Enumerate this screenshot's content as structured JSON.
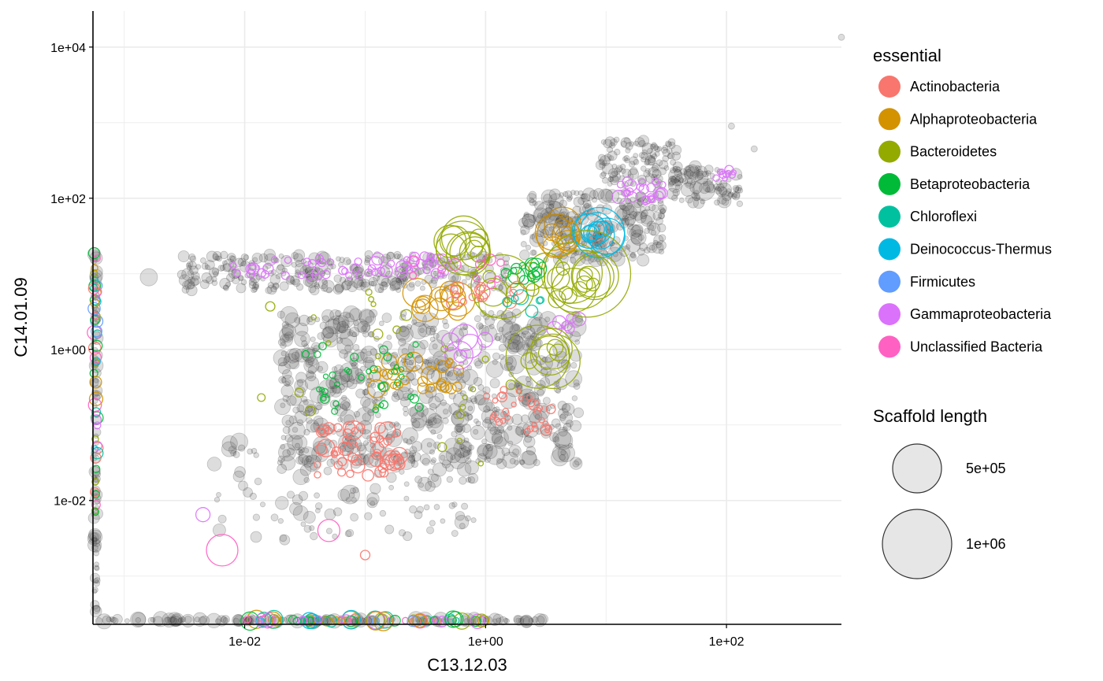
{
  "chart_data": {
    "type": "scatter",
    "xlabel": "C13.12.03",
    "ylabel": "C14.01.09",
    "x_scale": "log10",
    "y_scale": "log10",
    "xlim": [
      0.00055,
      900
    ],
    "ylim": [
      0.00023,
      30000
    ],
    "x_ticks": [
      {
        "value": 0.01,
        "label": "1e-02"
      },
      {
        "value": 1,
        "label": "1e+00"
      },
      {
        "value": 100,
        "label": "1e+02"
      }
    ],
    "y_ticks": [
      {
        "value": 0.01,
        "label": "1e-02"
      },
      {
        "value": 1,
        "label": "1e+00"
      },
      {
        "value": 100,
        "label": "1e+02"
      },
      {
        "value": 10000,
        "label": "1e+04"
      }
    ],
    "grid": true,
    "legend_placement": "right",
    "color_legend": {
      "title": "essential",
      "entries": [
        {
          "label": "Actinobacteria",
          "color": "#F8766D"
        },
        {
          "label": "Alphaproteobacteria",
          "color": "#D39200"
        },
        {
          "label": "Bacteroidetes",
          "color": "#93AA00"
        },
        {
          "label": "Betaproteobacteria",
          "color": "#00BA38"
        },
        {
          "label": "Chloroflexi",
          "color": "#00C19F"
        },
        {
          "label": "Deinococcus-Thermus",
          "color": "#00B9E3"
        },
        {
          "label": "Firmicutes",
          "color": "#619CFF"
        },
        {
          "label": "Gammaproteobacteria",
          "color": "#DB72FB"
        },
        {
          "label": "Unclassified Bacteria",
          "color": "#FF61C3"
        }
      ]
    },
    "size_legend": {
      "title": "Scaffold length",
      "entries": [
        {
          "label": "5e+05",
          "value": 500000
        },
        {
          "label": "1e+06",
          "value": 1000000
        }
      ]
    },
    "background_point_color": "#000000",
    "clusters": [
      {
        "name": "grey-top-right-band",
        "category": null,
        "x": [
          9,
          40
        ],
        "y": [
          150,
          600
        ],
        "n": 120,
        "size": [
          3,
          7
        ]
      },
      {
        "name": "grey-far-band",
        "category": null,
        "x": [
          35,
          130
        ],
        "y": [
          80,
          260
        ],
        "n": 90,
        "size": [
          3,
          9
        ]
      },
      {
        "name": "grey-diagonal",
        "category": null,
        "x": [
          2,
          30
        ],
        "y": [
          15,
          120
        ],
        "n": 260,
        "size": [
          3,
          10
        ]
      },
      {
        "name": "grey-horizontal",
        "category": null,
        "x": [
          0.003,
          1.5
        ],
        "y": [
          6,
          18
        ],
        "n": 320,
        "size": [
          3,
          8
        ]
      },
      {
        "name": "grey-main-cloud",
        "category": null,
        "x": [
          0.02,
          6
        ],
        "y": [
          0.03,
          3
        ],
        "n": 700,
        "size": [
          3,
          12
        ]
      },
      {
        "name": "grey-low-scatter",
        "category": null,
        "x": [
          0.005,
          0.8
        ],
        "y": [
          0.003,
          0.06
        ],
        "n": 130,
        "size": [
          3,
          10
        ]
      },
      {
        "name": "grey-x-axis-floor",
        "category": null,
        "x": [
          0.0006,
          3
        ],
        "y": [
          0.00025,
          0.00027
        ],
        "n": 160,
        "size": [
          3,
          10
        ]
      },
      {
        "name": "grey-y-axis-wall",
        "category": null,
        "x": [
          0.00056,
          0.0006
        ],
        "y": [
          0.0003,
          20
        ],
        "n": 90,
        "size": [
          3,
          9
        ]
      },
      {
        "name": "gamma-top-band",
        "category": "Gammaproteobacteria",
        "x": [
          12,
          30
        ],
        "y": [
          90,
          170
        ],
        "n": 22,
        "size": [
          4,
          9
        ]
      },
      {
        "name": "gamma-far-band",
        "category": "Gammaproteobacteria",
        "x": [
          80,
          120
        ],
        "y": [
          180,
          240
        ],
        "n": 10,
        "size": [
          3,
          7
        ]
      },
      {
        "name": "gamma-horizontal",
        "category": "Gammaproteobacteria",
        "x": [
          0.008,
          0.5
        ],
        "y": [
          9,
          18
        ],
        "n": 55,
        "size": [
          4,
          8
        ]
      },
      {
        "name": "gamma-mid",
        "category": "Gammaproteobacteria",
        "x": [
          0.5,
          1.0
        ],
        "y": [
          0.8,
          1.5
        ],
        "n": 6,
        "size": [
          8,
          22
        ]
      },
      {
        "name": "gamma-right",
        "category": "Gammaproteobacteria",
        "x": [
          3.5,
          6
        ],
        "y": [
          1.6,
          3.0
        ],
        "n": 6,
        "size": [
          6,
          16
        ]
      },
      {
        "name": "alpha-big",
        "category": "Alphaproteobacteria",
        "x": [
          3,
          5
        ],
        "y": [
          22,
          45
        ],
        "n": 9,
        "size": [
          10,
          28
        ]
      },
      {
        "name": "alpha-mid",
        "category": "Alphaproteobacteria",
        "x": [
          0.25,
          0.6
        ],
        "y": [
          3,
          6
        ],
        "n": 14,
        "size": [
          8,
          22
        ]
      },
      {
        "name": "alpha-low",
        "category": "Alphaproteobacteria",
        "x": [
          0.12,
          0.6
        ],
        "y": [
          0.3,
          0.7
        ],
        "n": 30,
        "size": [
          4,
          12
        ]
      },
      {
        "name": "bact-top",
        "category": "Bacteroidetes",
        "x": [
          0.5,
          0.9
        ],
        "y": [
          18,
          30
        ],
        "n": 10,
        "size": [
          10,
          32
        ]
      },
      {
        "name": "bact-center",
        "category": "Bacteroidetes",
        "x": [
          1,
          9
        ],
        "y": [
          4,
          12
        ],
        "n": 24,
        "size": [
          8,
          42
        ]
      },
      {
        "name": "bact-low",
        "category": "Bacteroidetes",
        "x": [
          2.2,
          4
        ],
        "y": [
          0.6,
          1.1
        ],
        "n": 7,
        "size": [
          10,
          36
        ]
      },
      {
        "name": "bact-small",
        "category": "Bacteroidetes",
        "x": [
          0.01,
          2
        ],
        "y": [
          0.02,
          6
        ],
        "n": 28,
        "size": [
          3,
          7
        ]
      },
      {
        "name": "deino",
        "category": "Deinococcus-Thermus",
        "x": [
          7,
          11
        ],
        "y": [
          28,
          45
        ],
        "n": 8,
        "size": [
          10,
          30
        ]
      },
      {
        "name": "beta-center",
        "category": "Betaproteobacteria",
        "x": [
          1.3,
          3
        ],
        "y": [
          8,
          16
        ],
        "n": 14,
        "size": [
          4,
          14
        ]
      },
      {
        "name": "beta-left",
        "category": "Betaproteobacteria",
        "x": [
          0.03,
          0.3
        ],
        "y": [
          0.15,
          1.2
        ],
        "n": 36,
        "size": [
          3,
          6
        ]
      },
      {
        "name": "actino-cloud",
        "category": "Actinobacteria",
        "x": [
          0.04,
          0.2
        ],
        "y": [
          0.02,
          0.1
        ],
        "n": 55,
        "size": [
          4,
          12
        ]
      },
      {
        "name": "actino-right",
        "category": "Actinobacteria",
        "x": [
          1,
          3.5
        ],
        "y": [
          0.08,
          0.3
        ],
        "n": 30,
        "size": [
          3,
          7
        ]
      },
      {
        "name": "actino-mid",
        "category": "Actinobacteria",
        "x": [
          0.5,
          2
        ],
        "y": [
          4,
          7
        ],
        "n": 14,
        "size": [
          4,
          9
        ]
      },
      {
        "name": "chloro-center",
        "category": "Chloroflexi",
        "x": [
          1.5,
          3
        ],
        "y": [
          3,
          5
        ],
        "n": 6,
        "size": [
          4,
          10
        ]
      },
      {
        "name": "unclass-horizontal",
        "category": "Unclassified Bacteria",
        "x": [
          0.2,
          2
        ],
        "y": [
          7,
          16
        ],
        "n": 10,
        "size": [
          4,
          9
        ]
      },
      {
        "name": "colored-x-axis-floor",
        "category": "mixed",
        "x": [
          0.008,
          1.0
        ],
        "y": [
          0.00025,
          0.00027
        ],
        "n": 70,
        "size": [
          4,
          12
        ]
      },
      {
        "name": "colored-y-axis-wall",
        "category": "mixed",
        "x": [
          0.00056,
          0.0006
        ],
        "y": [
          0.006,
          20
        ],
        "n": 50,
        "size": [
          4,
          9
        ]
      }
    ],
    "points": [
      {
        "category": null,
        "x": 1000,
        "y": 13500,
        "size": 4
      },
      {
        "category": null,
        "x": 0.0016,
        "y": 9,
        "size": 11
      },
      {
        "category": "Unclassified Bacteria",
        "x": 0.0065,
        "y": 0.0022,
        "size": 20
      },
      {
        "category": "Unclassified Bacteria",
        "x": 0.05,
        "y": 0.004,
        "size": 14
      },
      {
        "category": "Gammaproteobacteria",
        "x": 0.0045,
        "y": 0.0065,
        "size": 9
      },
      {
        "category": "Actinobacteria",
        "x": 0.1,
        "y": 0.0019,
        "size": 6
      },
      {
        "category": "Bacteroidetes",
        "x": 7,
        "y": 10,
        "size": 55
      },
      {
        "category": "Bacteroidetes",
        "x": 2.7,
        "y": 0.8,
        "size": 40
      },
      {
        "category": "Bacteroidetes",
        "x": 0.65,
        "y": 22,
        "size": 34
      },
      {
        "category": "Deinococcus-Thermus",
        "x": 8.8,
        "y": 35,
        "size": 32
      },
      {
        "category": "Alphaproteobacteria",
        "x": 4,
        "y": 32,
        "size": 27
      },
      {
        "category": null,
        "x": 3.5,
        "y": 55,
        "size": 22
      },
      {
        "category": null,
        "x": 65,
        "y": 130,
        "size": 14
      },
      {
        "category": null,
        "x": 110,
        "y": 900,
        "size": 4
      },
      {
        "category": null,
        "x": 170,
        "y": 450,
        "size": 4
      },
      {
        "category": null,
        "x": 0.075,
        "y": 0.012,
        "size": 12
      },
      {
        "category": null,
        "x": 0.009,
        "y": 0.06,
        "size": 11
      }
    ]
  }
}
